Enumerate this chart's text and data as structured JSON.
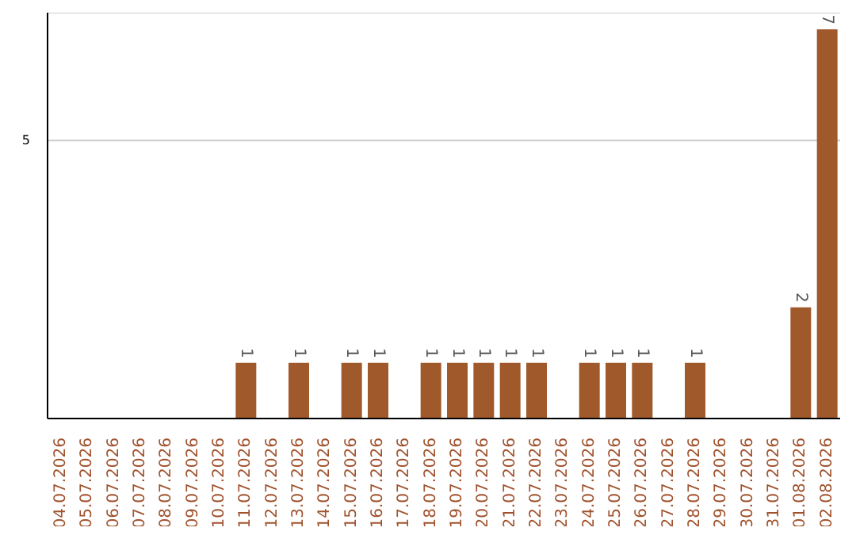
{
  "chart_data": {
    "type": "bar",
    "categories": [
      "04.07.2026",
      "05.07.2026",
      "06.07.2026",
      "07.07.2026",
      "08.07.2026",
      "09.07.2026",
      "10.07.2026",
      "11.07.2026",
      "12.07.2026",
      "13.07.2026",
      "14.07.2026",
      "15.07.2026",
      "16.07.2026",
      "17.07.2026",
      "18.07.2026",
      "19.07.2026",
      "20.07.2026",
      "21.07.2026",
      "22.07.2026",
      "23.07.2026",
      "24.07.2026",
      "25.07.2026",
      "26.07.2026",
      "27.07.2026",
      "28.07.2026",
      "29.07.2026",
      "30.07.2026",
      "31.07.2026",
      "01.08.2026",
      "02.08.2026"
    ],
    "values": [
      0,
      0,
      0,
      0,
      0,
      0,
      0,
      1,
      0,
      1,
      0,
      1,
      1,
      0,
      1,
      1,
      1,
      1,
      1,
      0,
      1,
      1,
      1,
      0,
      1,
      0,
      0,
      0,
      2,
      7
    ],
    "color": "#a0592a",
    "value_labels": [
      null,
      null,
      null,
      null,
      null,
      null,
      null,
      "1",
      null,
      "1",
      null,
      "1",
      "1",
      null,
      "1",
      "1",
      "1",
      "1",
      "1",
      null,
      "1",
      "1",
      "1",
      null,
      "1",
      null,
      null,
      null,
      "2",
      "7"
    ],
    "ylim": [
      0,
      7.3
    ],
    "yticks": [
      5
    ],
    "grid": "y"
  }
}
